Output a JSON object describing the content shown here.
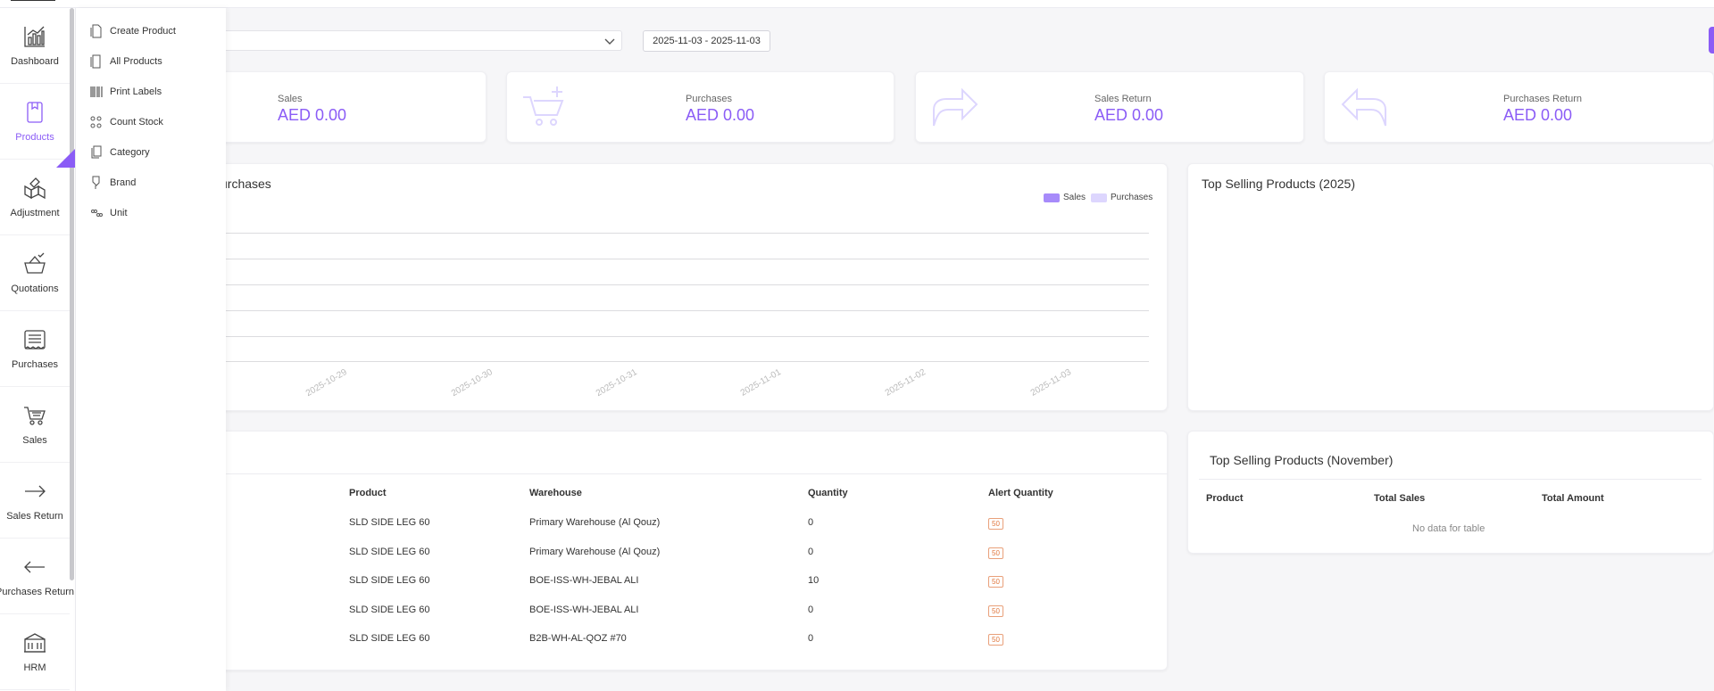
{
  "sidebar": {
    "items": [
      {
        "label": "Dashboard",
        "icon": "dashboard-chart-icon"
      },
      {
        "label": "Products",
        "icon": "product-box-icon"
      },
      {
        "label": "Adjustment",
        "icon": "adjustment-icon"
      },
      {
        "label": "Quotations",
        "icon": "quotation-basket-icon"
      },
      {
        "label": "Purchases",
        "icon": "purchase-receipt-icon"
      },
      {
        "label": "Sales",
        "icon": "sales-cart-icon"
      },
      {
        "label": "Sales Return",
        "icon": "arrow-right-icon"
      },
      {
        "label": "Purchases Return",
        "icon": "arrow-left-icon"
      },
      {
        "label": "HRM",
        "icon": "building-icon"
      }
    ]
  },
  "submenu": {
    "items": [
      {
        "label": "Create Product"
      },
      {
        "label": "All Products"
      },
      {
        "label": "Print Labels"
      },
      {
        "label": "Count Stock"
      },
      {
        "label": "Category"
      },
      {
        "label": "Brand"
      },
      {
        "label": "Unit"
      }
    ]
  },
  "filters": {
    "date_range": "2025-11-03 - 2025-11-03"
  },
  "stats": [
    {
      "label": "Sales",
      "value": "AED 0.00",
      "icon": "cart-icon"
    },
    {
      "label": "Purchases",
      "value": "AED 0.00",
      "icon": "cart-plus-icon"
    },
    {
      "label": "Sales Return",
      "value": "AED 0.00",
      "icon": "share-arrow-icon"
    },
    {
      "label": "Purchases Return",
      "value": "AED 0.00",
      "icon": "reply-arrow-icon"
    }
  ],
  "chart": {
    "title_visible": "urchases",
    "legend": [
      {
        "name": "Sales",
        "color": "#a78bfa"
      },
      {
        "name": "Purchases",
        "color": "#ddd6fe"
      }
    ],
    "x_ticks": [
      "2025-10-29",
      "2025-10-30",
      "2025-10-31",
      "2025-11-01",
      "2025-11-02",
      "2025-11-03"
    ]
  },
  "chart_data": {
    "type": "bar",
    "categories": [
      "2025-10-29",
      "2025-10-30",
      "2025-10-31",
      "2025-11-01",
      "2025-11-02",
      "2025-11-03"
    ],
    "series": [
      {
        "name": "Sales",
        "values": [
          0,
          0,
          0,
          0,
          0,
          0
        ]
      },
      {
        "name": "Purchases",
        "values": [
          0,
          0,
          0,
          0,
          0,
          0
        ]
      }
    ],
    "legend": "top-right",
    "grid": true
  },
  "top_selling_year": {
    "title": "Top Selling Products (2025)"
  },
  "stock_alert": {
    "headers": [
      "Product",
      "Warehouse",
      "Quantity",
      "Alert Quantity"
    ],
    "rows": [
      {
        "product": "SLD SIDE LEG 60",
        "warehouse": "Primary Warehouse (Al Qouz)",
        "quantity": "0",
        "alert": "50"
      },
      {
        "product": "SLD SIDE LEG 60",
        "warehouse": "Primary Warehouse (Al Qouz)",
        "quantity": "0",
        "alert": "50"
      },
      {
        "product": "SLD SIDE LEG 60",
        "warehouse": "BOE-ISS-WH-JEBAL ALI",
        "quantity": "10",
        "alert": "50"
      },
      {
        "product": "SLD SIDE LEG 60",
        "warehouse": "BOE-ISS-WH-JEBAL ALI",
        "quantity": "0",
        "alert": "50"
      },
      {
        "product": "SLD SIDE LEG 60",
        "warehouse": "B2B-WH-AL-QOZ #70",
        "quantity": "0",
        "alert": "50"
      }
    ]
  },
  "top_selling_month": {
    "title": "Top Selling Products (November)",
    "headers": [
      "Product",
      "Total Sales",
      "Total Amount"
    ],
    "empty_message": "No data for table"
  }
}
